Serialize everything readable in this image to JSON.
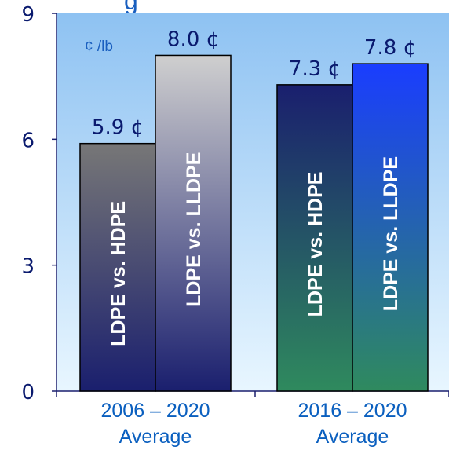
{
  "chart_data": {
    "type": "bar",
    "title_fragment": "g",
    "unit": "¢ /lb",
    "ylim": [
      0,
      9
    ],
    "y_ticks": [
      "0",
      "3",
      "6",
      "9"
    ],
    "categories": [
      {
        "line1": "2006 – 2020",
        "line2": "Average"
      },
      {
        "line1": "2016 – 2020",
        "line2": "Average"
      }
    ],
    "bars": [
      {
        "group": 0,
        "label": "LDPE vs. HDPE",
        "value": 5.9,
        "value_label": "5.9 ¢",
        "gradient": [
          "#777777",
          "#1a1f6e"
        ]
      },
      {
        "group": 0,
        "label": "LDPE vs. LLDPE",
        "value": 8.0,
        "value_label": "8.0 ¢",
        "gradient": [
          "#cfcfcf",
          "#1a1f6e"
        ]
      },
      {
        "group": 1,
        "label": "LDPE vs. HDPE",
        "value": 7.3,
        "value_label": "7.3 ¢",
        "gradient": [
          "#1a1f6e",
          "#2f8a5e"
        ]
      },
      {
        "group": 1,
        "label": "LDPE vs. LLDPE",
        "value": 7.8,
        "value_label": "7.8 ¢",
        "gradient": [
          "#1a3dff",
          "#2f8a5e"
        ]
      }
    ],
    "colors": {
      "axis": "#1a1f6e",
      "background_top": "#8ec2f2",
      "background_bottom": "#e8f6ff"
    }
  }
}
